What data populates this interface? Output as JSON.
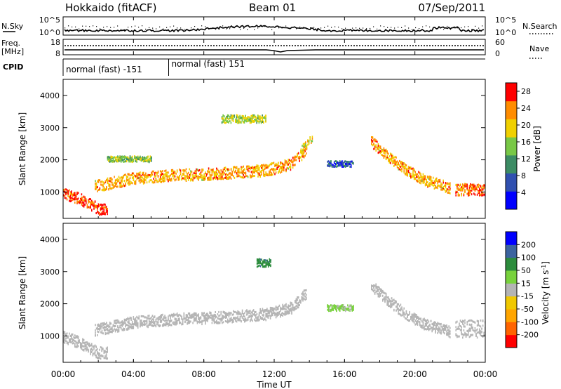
{
  "header": {
    "title": "Hokkaido (fitACF)",
    "beam": "Beam 01",
    "date": "07/Sep/2011"
  },
  "noise_panel": {
    "left_label": "N.Sky",
    "right_label": "N.Search",
    "left_ticks": [
      "10^5",
      "10^0"
    ],
    "right_ticks": [
      "10^5",
      "10^0"
    ]
  },
  "freq_panel": {
    "left_label_1": "Freq.",
    "left_label_2": "[MHz]",
    "right_label": "Nave",
    "left_ticks": [
      "18",
      "8"
    ],
    "right_ticks": [
      "60",
      "0"
    ]
  },
  "cpid": {
    "label": "CPID",
    "segments": [
      {
        "start_hour": 0,
        "end_hour": 6,
        "text": "normal (fast) -151"
      },
      {
        "start_hour": 6,
        "end_hour": 24,
        "text": "normal (fast) 151"
      }
    ]
  },
  "chart_data": [
    {
      "type": "heatmap",
      "title": "",
      "xlabel": "",
      "ylabel": "Slant Range [km]",
      "xlim": [
        0,
        24
      ],
      "ylim": [
        180,
        4500
      ],
      "yticks": [
        "1000",
        "2000",
        "3000",
        "4000"
      ],
      "colorbar": {
        "label": "Power [dB]",
        "ticks": [
          "4",
          "8",
          "12",
          "16",
          "20",
          "24",
          "28"
        ],
        "range": [
          0,
          30
        ],
        "colors": [
          "#0000ff",
          "#3050b0",
          "#3c8c64",
          "#78c846",
          "#f0d000",
          "#ff8c00",
          "#ff0000"
        ]
      },
      "regions": [
        {
          "x": [
            0.0,
            1.0,
            2.0,
            2.5
          ],
          "y": [
            1000,
            800,
            500,
            500
          ],
          "thickness": 300,
          "value": 26
        },
        {
          "x": [
            1.8,
            4.0,
            6.5,
            9.0,
            11.5,
            13.0,
            13.8
          ],
          "y": [
            1200,
            1450,
            1550,
            1600,
            1700,
            1900,
            2350
          ],
          "thickness": 300,
          "value": 22
        },
        {
          "x": [
            13.5,
            14.2
          ],
          "y": [
            2300,
            2700
          ],
          "thickness": 250,
          "value": 18
        },
        {
          "x": [
            17.5,
            18.5,
            19.5,
            20.5,
            22.0
          ],
          "y": [
            2600,
            2100,
            1700,
            1400,
            1150
          ],
          "thickness": 280,
          "value": 22
        },
        {
          "x": [
            22.3,
            24.0
          ],
          "y": [
            1100,
            1100
          ],
          "thickness": 300,
          "value": 25
        },
        {
          "x": [
            15.0,
            16.5
          ],
          "y": [
            1900,
            1900
          ],
          "thickness": 150,
          "value": 7
        },
        {
          "x": [
            2.5,
            5.0
          ],
          "y": [
            2050,
            2050
          ],
          "thickness": 150,
          "value": 15
        },
        {
          "x": [
            9.0,
            11.5
          ],
          "y": [
            3300,
            3300
          ],
          "thickness": 200,
          "value": 16
        }
      ]
    },
    {
      "type": "heatmap",
      "title": "",
      "xlabel": "Time UT",
      "ylabel": "Slant Range [km]",
      "xlim": [
        0,
        24
      ],
      "ylim": [
        180,
        4500
      ],
      "yticks": [
        "1000",
        "2000",
        "3000",
        "4000"
      ],
      "xticks": [
        "00:00",
        "04:00",
        "08:00",
        "12:00",
        "16:00",
        "20:00",
        "00:00"
      ],
      "colorbar": {
        "label": "Velocity [m s^-1]",
        "ticks": [
          "200",
          "100",
          "50",
          "15",
          "-15",
          "-50",
          "-100",
          "-200"
        ],
        "range": [
          -250,
          250
        ],
        "colors": [
          "#ff0000",
          "#ff6400",
          "#ffa500",
          "#f0c800",
          "#b4b4b4",
          "#78d23c",
          "#2c8c3c",
          "#3c64a0",
          "#0000ff"
        ]
      },
      "regions": [
        {
          "x": [
            0.0,
            1.0,
            2.0,
            2.5
          ],
          "y": [
            1000,
            800,
            500,
            500
          ],
          "thickness": 300,
          "value": 0
        },
        {
          "x": [
            1.8,
            4.0,
            6.5,
            9.0,
            11.5,
            13.0,
            13.8
          ],
          "y": [
            1200,
            1450,
            1550,
            1600,
            1700,
            1900,
            2350
          ],
          "thickness": 300,
          "value": 0
        },
        {
          "x": [
            17.5,
            18.5,
            19.5,
            20.5,
            22.0
          ],
          "y": [
            2600,
            2100,
            1700,
            1400,
            1150
          ],
          "thickness": 280,
          "value": 0
        },
        {
          "x": [
            22.3,
            24.0
          ],
          "y": [
            1250,
            1250
          ],
          "thickness": 450,
          "value": 0
        },
        {
          "x": [
            15.0,
            16.5
          ],
          "y": [
            1900,
            1900
          ],
          "thickness": 150,
          "value": 40
        },
        {
          "x": [
            11.0,
            11.8
          ],
          "y": [
            3300,
            3300
          ],
          "thickness": 200,
          "value": 120
        }
      ]
    }
  ]
}
